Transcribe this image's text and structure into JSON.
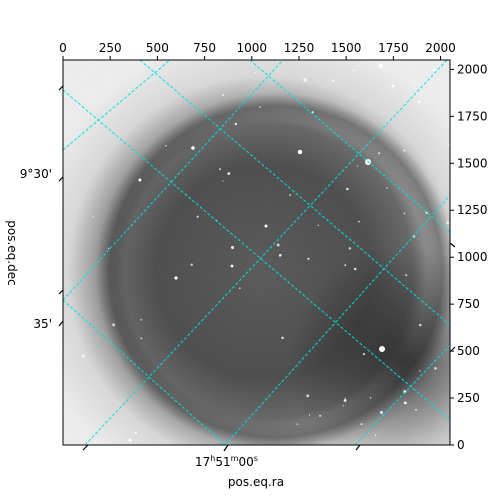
{
  "chart_data": {
    "type": "heatmap",
    "title": "",
    "xlabel": "pos.eq.ra",
    "ylabel": "pos.eq.dec",
    "pixel_axes": {
      "top": {
        "range": [
          0,
          2050
        ],
        "ticks": [
          0,
          250,
          500,
          750,
          1000,
          1250,
          1500,
          1750,
          2000
        ]
      },
      "right": {
        "range": [
          0,
          2050
        ],
        "ticks": [
          0,
          250,
          500,
          750,
          1000,
          1250,
          1500,
          1750,
          2000
        ]
      }
    },
    "world_axes": {
      "bottom": {
        "ticks": [
          {
            "hours": "17",
            "minutes": "51",
            "seconds": "00",
            "units": [
              "h",
              "m",
              "s"
            ]
          }
        ]
      },
      "left": {
        "ticks": [
          "9°30'",
          "35'"
        ]
      }
    },
    "grid": {
      "on": true,
      "color": "#00e0e0",
      "style": "dashed"
    },
    "colormap": "grayscale",
    "image": "astronomical sky frame with dark circular vignette (inverted grayscale), scattered stars"
  }
}
